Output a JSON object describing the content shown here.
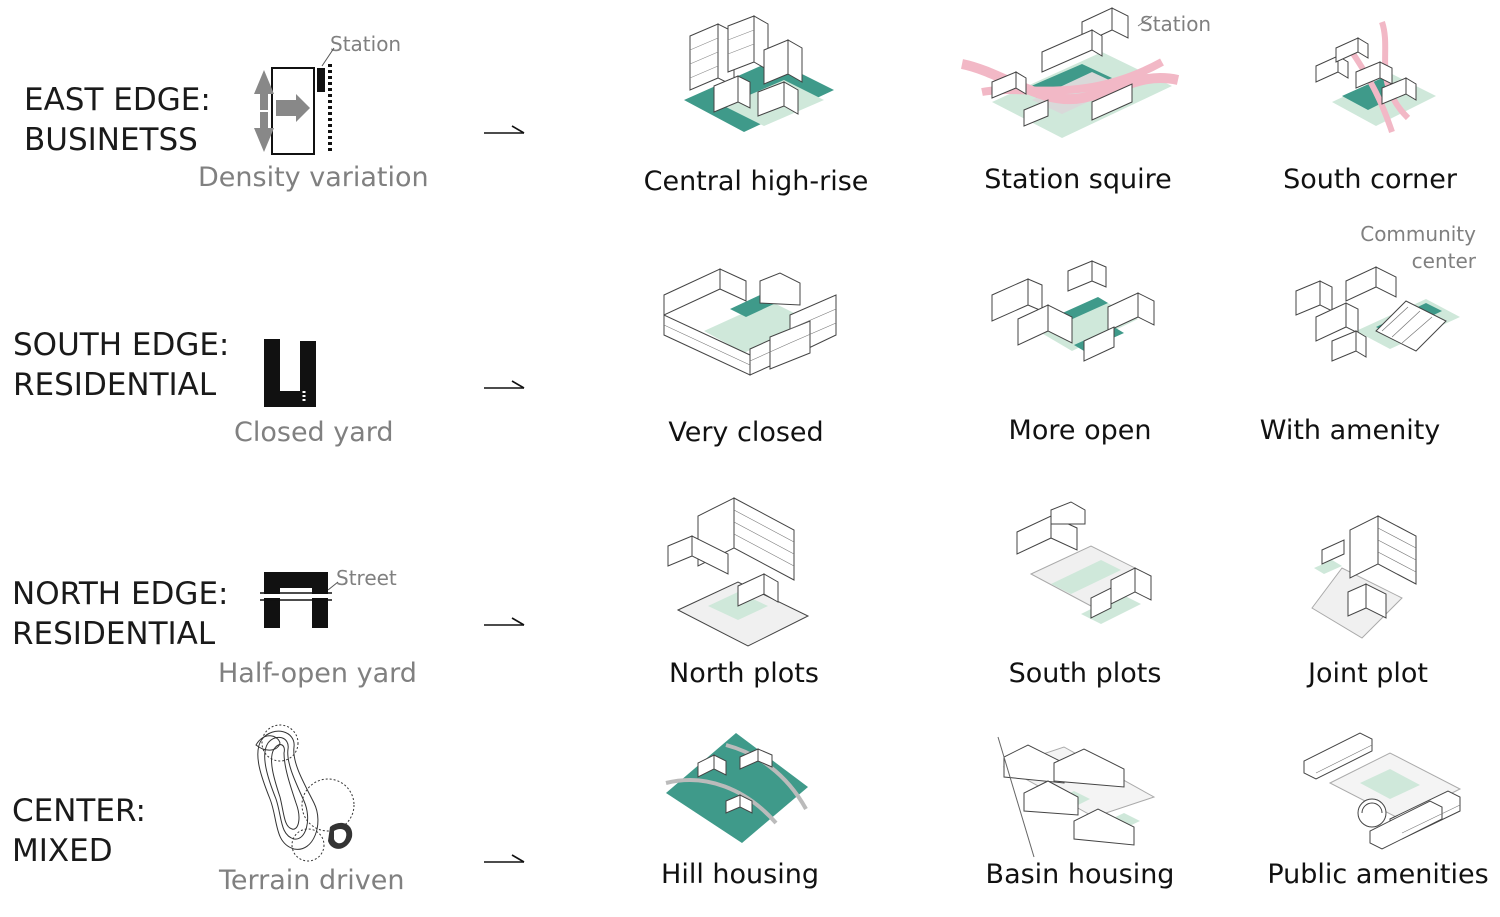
{
  "rows": [
    {
      "title_line1": "EAST EDGE:",
      "title_line2": "BUSINETSS",
      "diagram_icon": "density-variation-icon",
      "diagram_tag": "Station",
      "diagram_caption": "Density variation",
      "options": [
        {
          "label": "Central high-rise",
          "icon": "central-high-rise-axonometric"
        },
        {
          "label": "Station squire",
          "icon": "station-square-axonometric",
          "tag": "Station"
        },
        {
          "label": "South corner",
          "icon": "south-corner-axonometric"
        }
      ]
    },
    {
      "title_line1": "SOUTH EDGE:",
      "title_line2": "RESIDENTIAL",
      "diagram_icon": "closed-yard-icon",
      "diagram_caption": "Closed yard",
      "options": [
        {
          "label": "Very closed",
          "icon": "very-closed-axonometric"
        },
        {
          "label": "More open",
          "icon": "more-open-axonometric"
        },
        {
          "label": "With amenity",
          "icon": "with-amenity-axonometric",
          "tag_line1": "Community",
          "tag_line2": "center"
        }
      ]
    },
    {
      "title_line1": "NORTH EDGE:",
      "title_line2": "RESIDENTIAL",
      "diagram_icon": "half-open-yard-icon",
      "diagram_tag": "Street",
      "diagram_caption": "Half-open yard",
      "options": [
        {
          "label": "North plots",
          "icon": "north-plots-axonometric"
        },
        {
          "label": "South plots",
          "icon": "south-plots-axonometric"
        },
        {
          "label": "Joint plot",
          "icon": "joint-plot-axonometric"
        }
      ]
    },
    {
      "title_line1": "CENTER:",
      "title_line2": "MIXED",
      "diagram_icon": "terrain-contour-icon",
      "diagram_caption": "Terrain driven",
      "options": [
        {
          "label": "Hill housing",
          "icon": "hill-housing-axonometric"
        },
        {
          "label": "Basin housing",
          "icon": "basin-housing-axonometric"
        },
        {
          "label": "Public amenities",
          "icon": "public-amenities-axonometric"
        }
      ]
    }
  ],
  "colors": {
    "text": "#1a1a1a",
    "gray_text": "#808080",
    "teal": "#3f9a8a",
    "light_green": "#cfe8da",
    "pink": "#f2b8c6",
    "line": "#333333"
  }
}
